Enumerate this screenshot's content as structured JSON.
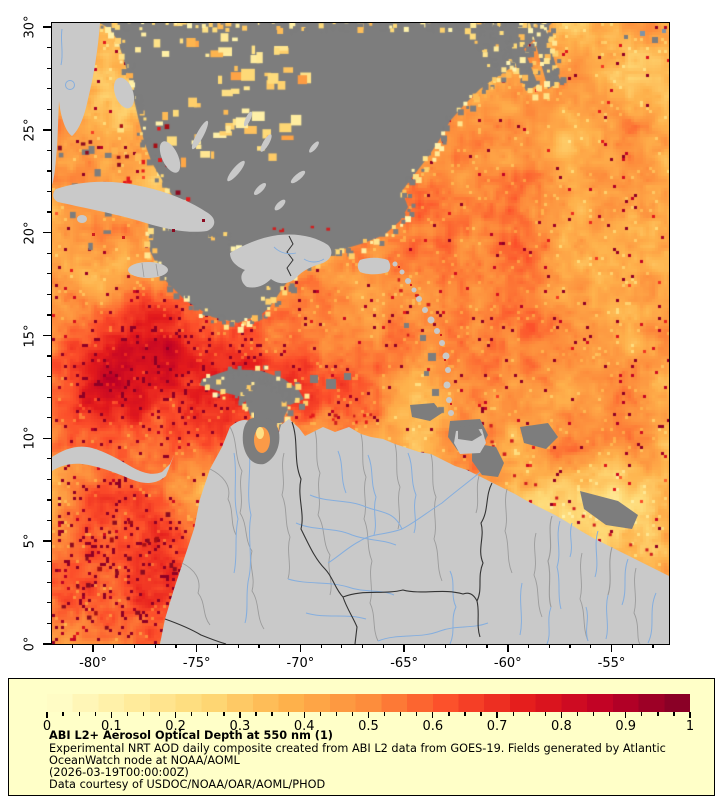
{
  "figure": {
    "title": "ABI L2+ Aerosol Optical Depth at 550 nm (1)",
    "description_lines": [
      "Experimental NRT AOD daily composite created from ABI L2 data from GOES-19. Fields generated by Atlantic",
      "OceanWatch node at NOAA/AOML",
      "(2026-03-19T00:00:00Z)",
      "Data courtesy of USDOC/NOAA/OAR/AOML/PHOD"
    ]
  },
  "map": {
    "y_axis": {
      "labels": [
        "30°",
        "25°",
        "20°",
        "15°",
        "10°",
        "5°",
        "0°"
      ],
      "unit": "degrees latitude"
    },
    "x_axis": {
      "labels": [
        "-80°",
        "-75°",
        "-70°",
        "-65°",
        "-60°",
        "-55°"
      ],
      "unit": "degrees longitude"
    }
  },
  "colorbar": {
    "min": 0,
    "max": 1,
    "tick_labels": [
      "0",
      "0.1",
      "0.2",
      "0.3",
      "0.4",
      "0.5",
      "0.6",
      "0.7",
      "0.8",
      "0.9",
      "1"
    ],
    "colormap_name": "YlOrRd",
    "colormap_stops": [
      "#FFFFCC",
      "#FFEDA0",
      "#FED976",
      "#FEB24C",
      "#FD8D3C",
      "#FC4E2A",
      "#E31A1C",
      "#BD0026",
      "#800026"
    ]
  },
  "colors": {
    "background": "#FFFFFF",
    "legend_bg": "#FFFFC8",
    "land": "#C9C9C9",
    "no_data": "#7D7D7D",
    "river": "#85AEDE",
    "country_border": "#333333",
    "state_border": "#9B9B9B",
    "axis": "#000000",
    "lake_fill": "#FB9A47",
    "speck_red": "#CF1F1F",
    "speck_darkred": "#8C0B20"
  }
}
